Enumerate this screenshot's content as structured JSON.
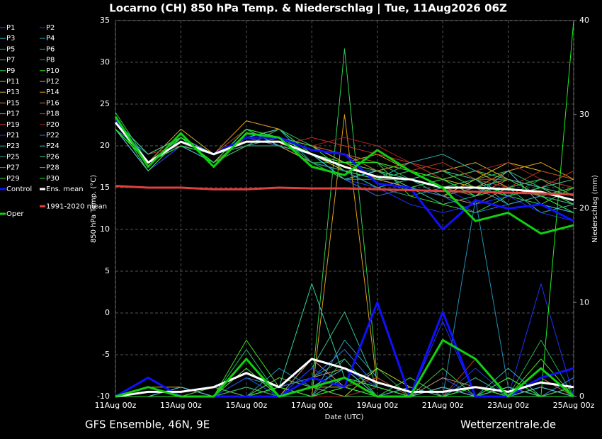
{
  "chart_data": {
    "type": "line",
    "title": "Locarno  (CH)  850 hPa Temp. & Niederschlag | Tue, 11Aug2026 06Z",
    "xlabel": "Date (UTC)",
    "ylabel": "850 hPa Temp. (°C)",
    "y2label": "Niederschlag (mm)",
    "footer_left": "GFS Ensemble, 46N, 9E",
    "footer_right": "Wetterzentrale.de",
    "x": [
      0,
      24,
      48,
      72,
      96,
      120,
      144,
      168,
      192,
      216,
      240,
      264,
      288,
      312,
      336
    ],
    "xlim": [
      0,
      336
    ],
    "xticks": [
      {
        "value": 0,
        "label": "11Aug 00z"
      },
      {
        "value": 48,
        "label": "13Aug 00z"
      },
      {
        "value": 96,
        "label": "15Aug 00z"
      },
      {
        "value": 144,
        "label": "17Aug 00z"
      },
      {
        "value": 192,
        "label": "19Aug 00z"
      },
      {
        "value": 240,
        "label": "21Aug 00z"
      },
      {
        "value": 288,
        "label": "23Aug 00z"
      },
      {
        "value": 336,
        "label": "25Aug 00z"
      }
    ],
    "ylim": [
      -10,
      35
    ],
    "yticks": [
      -10,
      -5,
      0,
      5,
      10,
      15,
      20,
      25,
      30,
      35
    ],
    "y2lim": [
      0,
      40
    ],
    "y2ticks": [
      0,
      10,
      20,
      30,
      40
    ],
    "grid": true,
    "series": [
      {
        "name": "P1",
        "color": "#3050ff",
        "values": [
          23,
          18,
          21,
          19,
          20,
          21,
          18,
          17,
          16,
          15,
          14,
          15,
          13,
          14,
          12
        ],
        "precip": [
          0,
          1,
          0,
          0,
          0,
          1,
          2,
          3,
          1,
          0,
          2,
          0,
          0,
          1,
          0
        ]
      },
      {
        "name": "P2",
        "color": "#2040d0",
        "values": [
          22,
          17,
          20,
          18,
          21,
          20,
          19,
          16,
          15,
          16,
          15,
          13,
          14,
          13,
          12
        ],
        "precip": [
          0,
          2,
          0,
          0,
          1,
          0,
          4,
          1,
          0,
          1,
          0,
          3,
          0,
          0,
          1
        ]
      },
      {
        "name": "P3",
        "color": "#30a0c0",
        "values": [
          23,
          18,
          20,
          19,
          21,
          22,
          18,
          17,
          17,
          16,
          14,
          15,
          14,
          15,
          13
        ],
        "precip": [
          0,
          0,
          1,
          0,
          2,
          1,
          0,
          6,
          2,
          0,
          1,
          0,
          2,
          0,
          0
        ]
      },
      {
        "name": "P4",
        "color": "#2090b0",
        "values": [
          22,
          19,
          21,
          18,
          20,
          21,
          20,
          18,
          16,
          17,
          16,
          14,
          15,
          16,
          14
        ],
        "precip": [
          0,
          1,
          0,
          0,
          0,
          3,
          1,
          0,
          1,
          0,
          0,
          21,
          1,
          0,
          2
        ]
      },
      {
        "name": "P5",
        "color": "#20b0a0",
        "values": [
          23,
          17,
          21,
          19,
          22,
          21,
          19,
          17,
          15,
          14,
          15,
          16,
          13,
          14,
          15
        ],
        "precip": [
          0,
          0,
          0,
          1,
          0,
          1,
          2,
          4,
          0,
          2,
          0,
          1,
          0,
          3,
          0
        ]
      },
      {
        "name": "P6",
        "color": "#20c060",
        "values": [
          23,
          18,
          20,
          18,
          21,
          22,
          20,
          19,
          18,
          16,
          15,
          16,
          17,
          15,
          14
        ],
        "precip": [
          0,
          1,
          0,
          0,
          5,
          0,
          1,
          2,
          0,
          0,
          1,
          0,
          1,
          0,
          0
        ]
      },
      {
        "name": "P7",
        "color": "#30c090",
        "values": [
          22,
          18,
          21,
          19,
          20,
          20,
          19,
          16,
          17,
          15,
          13,
          14,
          15,
          12,
          13
        ],
        "precip": [
          0,
          0,
          1,
          0,
          1,
          0,
          3,
          9,
          1,
          0,
          0,
          2,
          0,
          1,
          0
        ]
      },
      {
        "name": "P8",
        "color": "#20a040",
        "values": [
          23,
          17,
          21,
          18,
          22,
          21,
          18,
          18,
          16,
          17,
          16,
          15,
          14,
          16,
          15
        ],
        "precip": [
          0,
          2,
          0,
          0,
          0,
          1,
          0,
          1,
          3,
          0,
          1,
          0,
          0,
          0,
          2
        ]
      },
      {
        "name": "P9",
        "color": "#30d050",
        "values": [
          24,
          18,
          20,
          19,
          21,
          22,
          19,
          17,
          15,
          16,
          17,
          15,
          16,
          14,
          13
        ],
        "precip": [
          0,
          0,
          0,
          0,
          2,
          0,
          1,
          37,
          2,
          0,
          0,
          1,
          0,
          0,
          0
        ]
      },
      {
        "name": "P10",
        "color": "#40e020",
        "values": [
          23,
          17,
          21,
          18,
          21,
          21,
          20,
          19,
          18,
          14,
          13,
          12,
          14,
          13,
          15
        ],
        "precip": [
          0,
          1,
          0,
          0,
          6,
          1,
          0,
          2,
          1,
          0,
          0,
          1,
          0,
          4,
          0
        ]
      },
      {
        "name": "P11",
        "color": "#c0d030",
        "values": [
          22,
          18,
          20,
          19,
          22,
          20,
          18,
          16,
          17,
          18,
          16,
          17,
          15,
          16,
          14
        ],
        "precip": [
          0,
          0,
          0,
          0,
          0,
          2,
          1,
          0,
          3,
          1,
          0,
          0,
          1,
          0,
          0
        ]
      },
      {
        "name": "P12",
        "color": "#e0c020",
        "values": [
          23,
          19,
          21,
          18,
          21,
          22,
          19,
          17,
          16,
          15,
          14,
          16,
          18,
          17,
          16
        ],
        "precip": [
          0,
          1,
          1,
          0,
          0,
          0,
          1,
          1,
          0,
          2,
          0,
          0,
          0,
          1,
          0
        ]
      },
      {
        "name": "P13",
        "color": "#d0b030",
        "values": [
          23,
          18,
          22,
          19,
          20,
          21,
          20,
          18,
          17,
          16,
          17,
          18,
          16,
          15,
          14
        ],
        "precip": [
          0,
          0,
          0,
          0,
          1,
          0,
          2,
          3,
          0,
          1,
          0,
          0,
          2,
          0,
          1
        ]
      },
      {
        "name": "P14",
        "color": "#e0a020",
        "values": [
          22,
          17,
          21,
          19,
          23,
          22,
          19,
          18,
          19,
          17,
          16,
          15,
          17,
          18,
          16
        ],
        "precip": [
          0,
          1,
          0,
          0,
          0,
          1,
          0,
          30,
          1,
          0,
          1,
          0,
          0,
          0,
          0
        ]
      },
      {
        "name": "P15",
        "color": "#c09060",
        "values": [
          23,
          18,
          20,
          18,
          21,
          20,
          18,
          17,
          16,
          15,
          14,
          13,
          15,
          14,
          13
        ],
        "precip": [
          0,
          0,
          0,
          1,
          0,
          0,
          4,
          1,
          0,
          0,
          2,
          1,
          0,
          0,
          0
        ]
      },
      {
        "name": "P16",
        "color": "#d08030",
        "values": [
          23,
          18,
          21,
          19,
          22,
          21,
          20,
          19,
          17,
          18,
          16,
          17,
          15,
          16,
          15
        ],
        "precip": [
          0,
          1,
          0,
          0,
          3,
          0,
          0,
          2,
          1,
          0,
          0,
          0,
          1,
          0,
          1
        ]
      },
      {
        "name": "P17",
        "color": "#e07040",
        "values": [
          22,
          17,
          20,
          18,
          21,
          22,
          19,
          18,
          16,
          17,
          15,
          14,
          16,
          15,
          14
        ],
        "precip": [
          0,
          0,
          1,
          0,
          0,
          2,
          1,
          0,
          0,
          1,
          0,
          0,
          0,
          2,
          0
        ]
      },
      {
        "name": "P18",
        "color": "#b04020",
        "values": [
          23,
          18,
          21,
          19,
          20,
          21,
          20,
          19,
          18,
          17,
          18,
          16,
          15,
          17,
          16
        ],
        "precip": [
          0,
          0,
          0,
          0,
          1,
          0,
          0,
          1,
          2,
          0,
          0,
          4,
          0,
          0,
          0
        ]
      },
      {
        "name": "P19",
        "color": "#d03030",
        "values": [
          23,
          19,
          20,
          18,
          21,
          20,
          21,
          20,
          19,
          18,
          17,
          16,
          16,
          15,
          17
        ],
        "precip": [
          0,
          1,
          0,
          0,
          0,
          0,
          1,
          0,
          0,
          0,
          1,
          0,
          2,
          0,
          0
        ]
      },
      {
        "name": "P20",
        "color": "#a02020",
        "values": [
          22,
          18,
          21,
          19,
          22,
          21,
          20,
          21,
          20,
          18,
          16,
          17,
          18,
          16,
          15
        ],
        "precip": [
          0,
          0,
          0,
          1,
          0,
          1,
          0,
          0,
          1,
          0,
          0,
          0,
          0,
          1,
          0
        ]
      },
      {
        "name": "P21",
        "color": "#2030ff",
        "values": [
          23,
          17,
          20,
          18,
          20,
          21,
          18,
          17,
          15,
          13,
          12,
          13,
          14,
          12,
          11
        ],
        "precip": [
          0,
          1,
          0,
          0,
          2,
          0,
          3,
          1,
          0,
          0,
          8,
          0,
          0,
          12,
          0
        ]
      },
      {
        "name": "P22",
        "color": "#3070e0",
        "values": [
          22,
          18,
          21,
          19,
          21,
          20,
          19,
          16,
          14,
          15,
          14,
          12,
          13,
          14,
          12
        ],
        "precip": [
          0,
          0,
          0,
          0,
          0,
          1,
          2,
          5,
          1,
          0,
          0,
          1,
          0,
          0,
          2
        ]
      },
      {
        "name": "P23",
        "color": "#30b0b0",
        "values": [
          23,
          18,
          20,
          18,
          22,
          21,
          18,
          17,
          16,
          18,
          19,
          17,
          16,
          15,
          14
        ],
        "precip": [
          0,
          2,
          0,
          0,
          1,
          0,
          0,
          2,
          0,
          1,
          0,
          0,
          3,
          0,
          0
        ]
      },
      {
        "name": "P24",
        "color": "#40c0e0",
        "values": [
          22,
          17,
          21,
          19,
          21,
          22,
          19,
          16,
          17,
          15,
          16,
          14,
          17,
          13,
          12
        ],
        "precip": [
          0,
          0,
          1,
          0,
          0,
          0,
          1,
          3,
          0,
          0,
          1,
          0,
          0,
          1,
          0
        ]
      },
      {
        "name": "P25",
        "color": "#30a090",
        "values": [
          23,
          18,
          20,
          19,
          20,
          21,
          18,
          17,
          15,
          16,
          14,
          15,
          13,
          14,
          13
        ],
        "precip": [
          0,
          1,
          0,
          0,
          4,
          0,
          2,
          1,
          0,
          0,
          0,
          2,
          0,
          0,
          1
        ]
      },
      {
        "name": "P26",
        "color": "#30d0a0",
        "values": [
          23,
          19,
          21,
          18,
          22,
          20,
          19,
          18,
          17,
          16,
          17,
          16,
          14,
          15,
          16
        ],
        "precip": [
          0,
          0,
          0,
          0,
          0,
          1,
          12,
          2,
          1,
          0,
          0,
          0,
          1,
          0,
          0
        ]
      },
      {
        "name": "P27",
        "color": "#20b050",
        "values": [
          22,
          18,
          20,
          19,
          21,
          21,
          18,
          16,
          16,
          17,
          15,
          14,
          15,
          16,
          14
        ],
        "precip": [
          0,
          1,
          0,
          0,
          1,
          0,
          0,
          4,
          0,
          2,
          0,
          1,
          0,
          6,
          0
        ]
      },
      {
        "name": "P28",
        "color": "#40c040",
        "values": [
          23,
          17,
          21,
          18,
          20,
          22,
          19,
          18,
          17,
          15,
          16,
          17,
          16,
          14,
          15
        ],
        "precip": [
          0,
          0,
          0,
          1,
          0,
          2,
          1,
          0,
          0,
          0,
          3,
          0,
          0,
          0,
          1
        ]
      },
      {
        "name": "P29",
        "color": "#30e040",
        "values": [
          23,
          18,
          20,
          19,
          21,
          21,
          20,
          17,
          16,
          16,
          15,
          15,
          14,
          15,
          13
        ],
        "precip": [
          0,
          1,
          0,
          0,
          3,
          0,
          1,
          2,
          1,
          0,
          0,
          1,
          0,
          0,
          0
        ]
      },
      {
        "name": "P30",
        "color": "#20f020",
        "values": [
          22,
          18,
          21,
          18,
          22,
          21,
          19,
          18,
          18,
          17,
          16,
          14,
          15,
          14,
          12
        ],
        "precip": [
          0,
          0,
          0,
          0,
          0,
          1,
          0,
          1,
          0,
          0,
          0,
          0,
          2,
          0,
          40
        ]
      },
      {
        "name": "Control",
        "color": "#1010ff",
        "values": [
          23,
          18,
          20.5,
          19,
          21,
          21,
          19.5,
          19,
          15.5,
          15,
          10,
          13.5,
          12.5,
          13,
          11
        ],
        "precip": [
          0,
          2,
          0,
          0,
          0,
          0,
          2,
          1,
          10,
          0,
          9,
          0,
          0,
          2,
          3
        ]
      },
      {
        "name": "Ens. mean",
        "color": "#ffffff",
        "values": [
          22.8,
          18,
          20.5,
          19,
          20.5,
          20.5,
          19,
          17.5,
          16.3,
          16,
          15,
          15,
          14.8,
          14.5,
          13.5
        ],
        "precip": [
          0,
          0.5,
          0.5,
          1,
          2.5,
          1,
          4,
          3,
          1.5,
          0.5,
          0.5,
          1,
          0.5,
          1.5,
          1
        ]
      },
      {
        "name": "1991-2020 mean",
        "color": "#e04040",
        "values": [
          15.2,
          15,
          15,
          14.8,
          14.8,
          15,
          14.9,
          14.9,
          14.8,
          14.7,
          14.6,
          14.5,
          14.4,
          14.3,
          14.2
        ]
      },
      {
        "name": "Oper",
        "color": "#10d010",
        "values": [
          23.5,
          17.5,
          21.5,
          17.5,
          21.5,
          21,
          17.5,
          16.5,
          19.5,
          17,
          15,
          11,
          12,
          9.5,
          10.5
        ],
        "precip": [
          0,
          1,
          0,
          0,
          4,
          0,
          1,
          2,
          0,
          0,
          6,
          4,
          0,
          3,
          0
        ]
      }
    ]
  }
}
